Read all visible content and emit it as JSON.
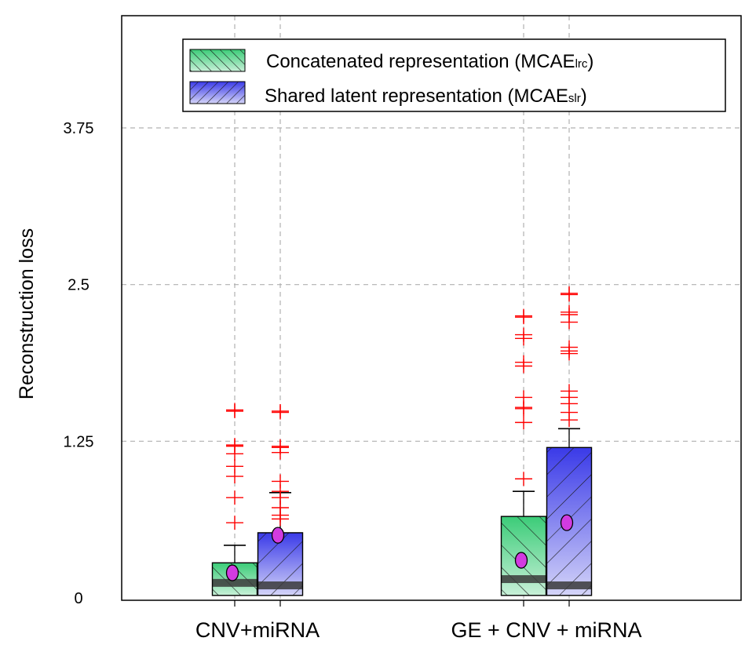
{
  "chart_data": {
    "type": "box",
    "title": "",
    "xlabel": "",
    "ylabel": "Reconstruction loss",
    "ylim": [
      0,
      4.3
    ],
    "yticks": [
      0,
      1.25,
      2.5,
      3.75
    ],
    "ytick_labels": [
      "0",
      "1.25",
      "2.5",
      "3.75"
    ],
    "categories": [
      "CNV+miRNA",
      "GE + CNV + miRNA"
    ],
    "grid": true,
    "legend_position": "top-right",
    "series": [
      {
        "name": "Concatenated representation",
        "legend_label": "Concatenated representation (MCAE",
        "legend_sub": "lrc",
        "legend_suffix": ")",
        "color_top": "#3bcc78",
        "color_bottom": "#c8f0d8",
        "boxes": [
          {
            "q1": 0.02,
            "median": 0.12,
            "q3": 0.28,
            "whisker_high": 0.42,
            "mean": 0.2,
            "outliers": [
              1.5,
              1.49,
              1.22,
              1.21,
              1.15,
              1.05,
              0.97,
              0.8,
              0.6
            ]
          },
          {
            "q1": 0.02,
            "median": 0.15,
            "q3": 0.65,
            "whisker_high": 0.85,
            "mean": 0.3,
            "outliers": [
              2.25,
              2.24,
              2.1,
              2.07,
              1.88,
              1.85,
              1.6,
              1.52,
              1.51,
              1.4,
              0.95
            ]
          }
        ]
      },
      {
        "name": "Shared latent representation",
        "legend_label": "Shared latent representation (MCAE",
        "legend_sub": "slr",
        "legend_suffix": ")",
        "color_top": "#3a3ae8",
        "color_bottom": "#d4d4f8",
        "boxes": [
          {
            "q1": 0.02,
            "median": 0.1,
            "q3": 0.52,
            "whisker_high": 0.84,
            "mean": 0.5,
            "outliers": [
              1.49,
              1.48,
              1.21,
              1.2,
              1.16,
              0.93,
              0.85,
              0.8,
              0.72,
              0.66,
              0.63
            ]
          },
          {
            "q1": 0.02,
            "median": 0.1,
            "q3": 1.2,
            "whisker_high": 1.35,
            "mean": 0.6,
            "outliers": [
              2.43,
              2.42,
              2.28,
              2.26,
              2.2,
              2.0,
              1.97,
              1.95,
              1.65,
              1.6,
              1.55,
              1.48,
              1.42
            ]
          }
        ]
      }
    ]
  }
}
